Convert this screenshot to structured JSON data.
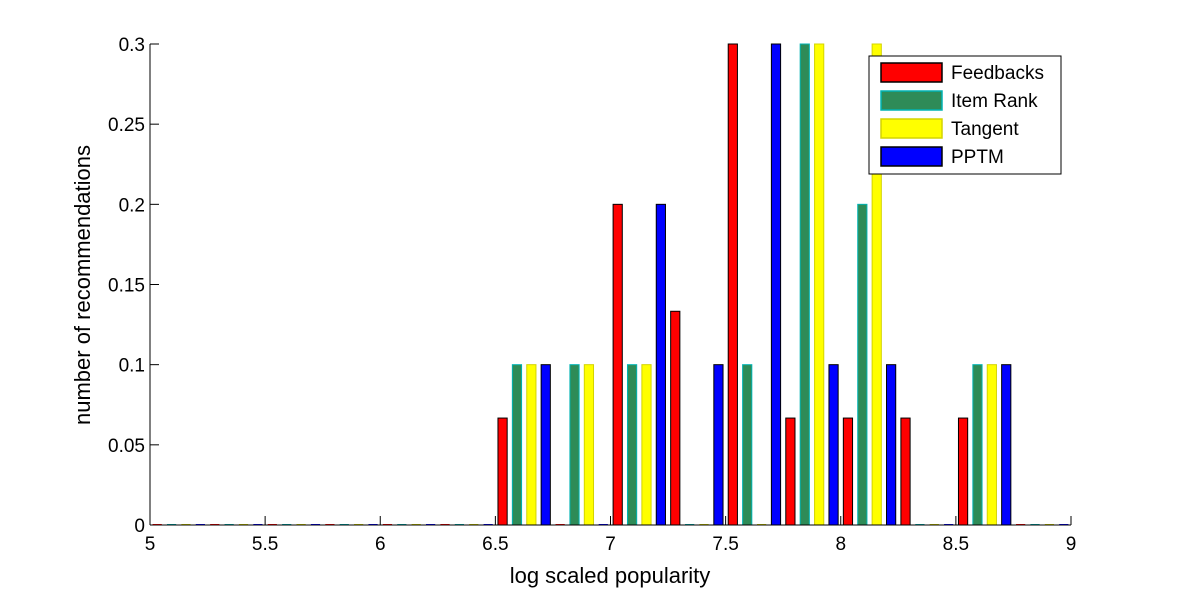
{
  "chart_data": {
    "type": "bar",
    "xlabel": "log scaled popularity",
    "ylabel": "number of recommendations",
    "xlim": [
      5,
      9
    ],
    "ylim": [
      0,
      0.3
    ],
    "xticks": [
      "5",
      "5.5",
      "6",
      "6.5",
      "7",
      "7.5",
      "8",
      "8.5",
      "9"
    ],
    "yticks": [
      "0",
      "0.05",
      "0.1",
      "0.15",
      "0.2",
      "0.25",
      "0.3"
    ],
    "bins": [
      5.125,
      5.375,
      5.625,
      5.875,
      6.125,
      6.375,
      6.625,
      6.875,
      7.125,
      7.375,
      7.625,
      7.875,
      8.125,
      8.375,
      8.625,
      8.875
    ],
    "legend_position": "top-right",
    "series": [
      {
        "name": "Feedbacks",
        "color": "#ff0000",
        "edge": "#000000",
        "values": [
          0,
          0,
          0,
          0,
          0,
          0,
          0.0667,
          0,
          0.2,
          0.1333,
          0.3,
          0.0667,
          0.0667,
          0.0667,
          0.0667,
          0
        ]
      },
      {
        "name": "Item Rank",
        "color": "#2e8b57",
        "edge": "#00b3b3",
        "values": [
          0,
          0,
          0,
          0,
          0,
          0,
          0.1,
          0.1,
          0.1,
          0,
          0.1,
          0.3,
          0.2,
          0,
          0.1,
          0
        ]
      },
      {
        "name": "Tangent",
        "color": "#ffff00",
        "edge": "#d4d400",
        "values": [
          0,
          0,
          0,
          0,
          0,
          0,
          0.1,
          0.1,
          0.1,
          0,
          0,
          0.3,
          0.3,
          0,
          0.1,
          0
        ]
      },
      {
        "name": "PPTM",
        "color": "#0000ff",
        "edge": "#000000",
        "values": [
          0,
          0,
          0,
          0,
          0,
          0,
          0.1,
          0,
          0.2,
          0.1,
          0.3,
          0.1,
          0.1,
          0,
          0.1,
          0
        ]
      }
    ]
  }
}
